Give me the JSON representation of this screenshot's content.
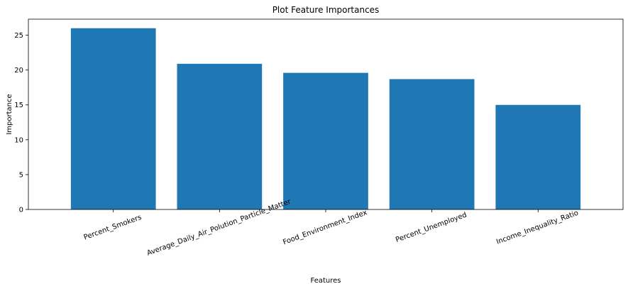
{
  "chart_data": {
    "type": "bar",
    "title": "Plot Feature Importances",
    "xlabel": "Features",
    "ylabel": "Importance",
    "categories": [
      "Percent_Smokers",
      "Average_Daily_Air_Polution_Particle_Matter",
      "Food_Environment_Index",
      "Percent_Unemployed",
      "Income_Inequality_Ratio"
    ],
    "values": [
      26.0,
      20.9,
      19.6,
      18.7,
      15.0
    ],
    "ylim": [
      0,
      27.3
    ],
    "yticks": [
      "0",
      "5",
      "10",
      "15",
      "20",
      "25"
    ],
    "bar_color": "#1f77b4",
    "grid": false
  }
}
